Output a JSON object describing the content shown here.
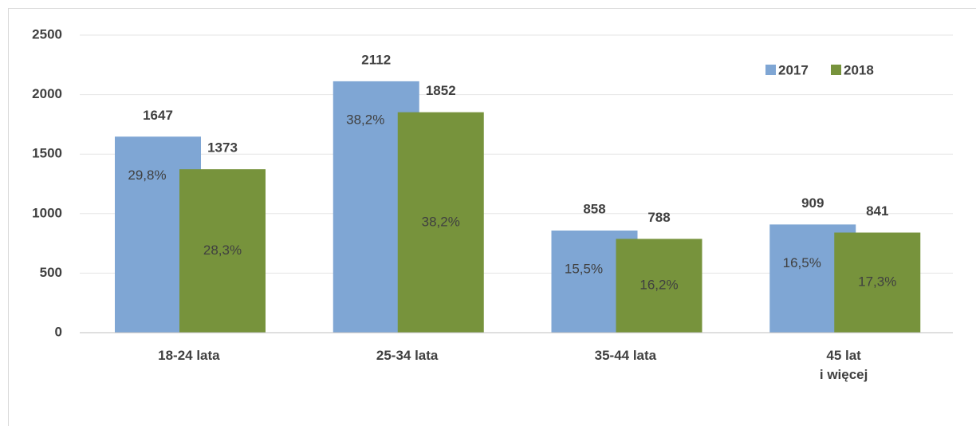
{
  "chart_data": {
    "type": "bar",
    "categories": [
      "18-24 lata",
      "25-34 lata",
      "35-44 lata",
      "45 lat\ni więcej"
    ],
    "series": [
      {
        "name": "2017",
        "color": "#7fa6d4",
        "values": [
          1647,
          2112,
          858,
          909
        ],
        "share_labels": [
          "29,8%",
          "38,2%",
          "15,5%",
          "16,5%"
        ]
      },
      {
        "name": "2018",
        "color": "#77933c",
        "values": [
          1373,
          1852,
          788,
          841
        ],
        "share_labels": [
          "28,3%",
          "38,2%",
          "16,2%",
          "17,3%"
        ]
      }
    ],
    "ylim": [
      0,
      2500
    ],
    "yticks": [
      0,
      500,
      1000,
      1500,
      2000,
      2500
    ],
    "grid": true,
    "legend": "top-right"
  }
}
